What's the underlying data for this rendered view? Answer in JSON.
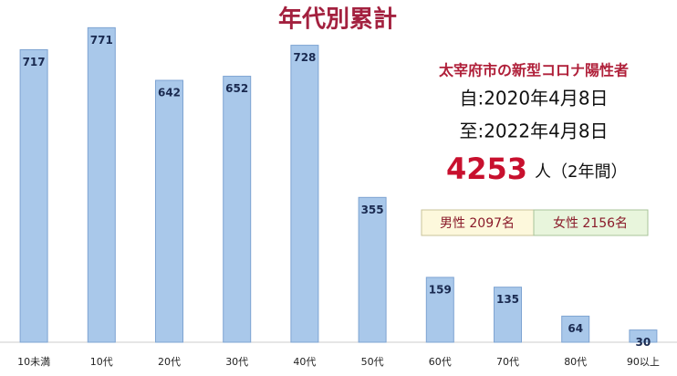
{
  "chart_data": {
    "type": "bar",
    "title": "年代別累計",
    "categories": [
      "10未満",
      "10代",
      "20代",
      "30代",
      "40代",
      "50代",
      "60代",
      "70代",
      "80代",
      "90以上"
    ],
    "values": [
      717,
      771,
      642,
      652,
      728,
      355,
      159,
      135,
      64,
      30
    ],
    "color": "#a9c8ea",
    "annotations": {
      "heading": "太宰府市の新型コロナ陽性者",
      "from": "自:2020年4月8日",
      "to": "至:2022年4月8日",
      "total": 4253,
      "total_suffix": "人（2年間）",
      "male": "男性 2097名",
      "female": "女性 2156名"
    }
  }
}
